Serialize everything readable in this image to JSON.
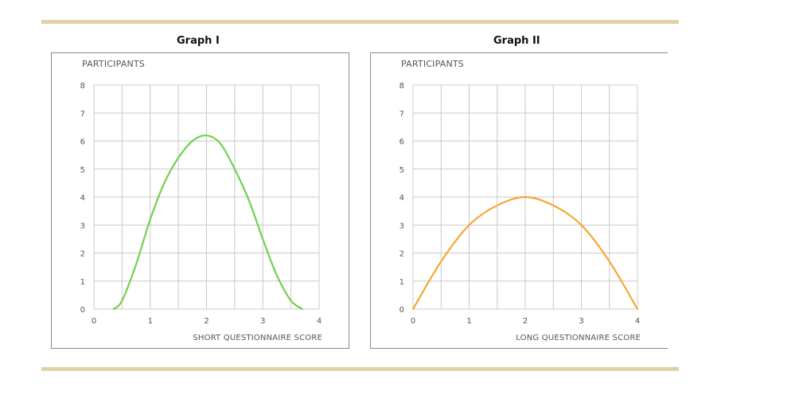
{
  "chart_data": [
    {
      "type": "line",
      "title": "Graph I",
      "ylabel": "PARTICIPANTS",
      "xlabel": "SHORT QUESTIONNAIRE SCORE",
      "xlim": [
        0,
        4
      ],
      "ylim": [
        0,
        8
      ],
      "x_ticks": [
        "0",
        "1",
        "2",
        "3",
        "4"
      ],
      "y_ticks": [
        "0",
        "1",
        "2",
        "3",
        "4",
        "5",
        "6",
        "7",
        "8"
      ],
      "grid": true,
      "series": [
        {
          "color": "#6fd24e",
          "x": [
            0.35,
            0.5,
            0.75,
            1.0,
            1.25,
            1.5,
            1.75,
            2.0,
            2.25,
            2.5,
            2.75,
            3.0,
            3.25,
            3.5,
            3.7
          ],
          "y": [
            0.0,
            0.3,
            1.6,
            3.2,
            4.5,
            5.4,
            6.0,
            6.2,
            5.9,
            5.0,
            3.9,
            2.5,
            1.2,
            0.3,
            0.0
          ]
        }
      ]
    },
    {
      "type": "line",
      "title": "Graph II",
      "ylabel": "PARTICIPANTS",
      "xlabel": "LONG QUESTIONNAIRE SCORE",
      "xlim": [
        0,
        4
      ],
      "ylim": [
        0,
        8
      ],
      "x_ticks": [
        "0",
        "1",
        "2",
        "3",
        "4"
      ],
      "y_ticks": [
        "0",
        "1",
        "2",
        "3",
        "4",
        "5",
        "6",
        "7",
        "8"
      ],
      "grid": true,
      "series": [
        {
          "color": "#f6a531",
          "x": [
            0.0,
            0.5,
            1.0,
            1.5,
            2.0,
            2.5,
            3.0,
            3.5,
            4.0
          ],
          "y": [
            0.0,
            1.7,
            3.0,
            3.7,
            4.0,
            3.7,
            3.0,
            1.7,
            0.0
          ]
        }
      ]
    }
  ]
}
